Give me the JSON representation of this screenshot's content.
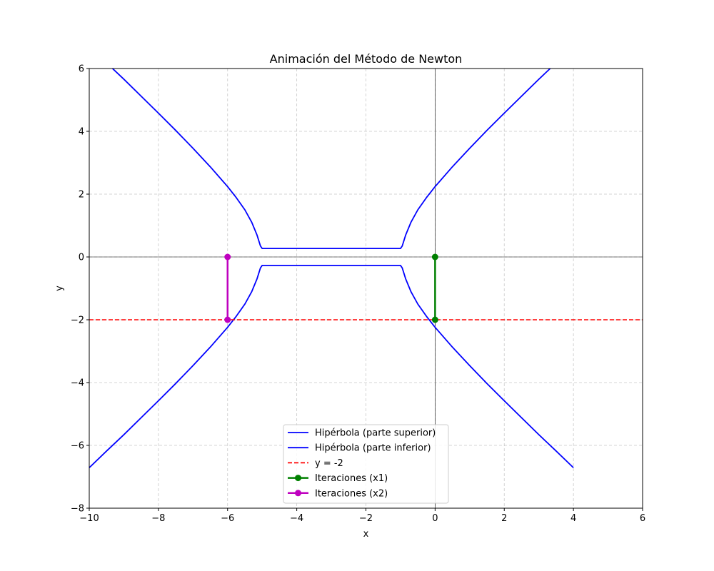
{
  "chart_data": {
    "type": "line",
    "title": "Animación del Método de Newton",
    "xlabel": "x",
    "ylabel": "y",
    "xlim": [
      -10,
      6
    ],
    "ylim": [
      -8,
      6
    ],
    "xticks": [
      -10,
      -8,
      -6,
      -4,
      -2,
      0,
      2,
      4,
      6
    ],
    "yticks": [
      -8,
      -6,
      -4,
      -2,
      0,
      2,
      4,
      6
    ],
    "grid": true,
    "legend_position": "lower-center",
    "series": [
      {
        "name": "Hipérbola (parte superior)",
        "kind": "curve",
        "color": "#0000ff",
        "points": [
          [
            -10,
            6.71
          ],
          [
            -9.5,
            6.18
          ],
          [
            -9,
            5.66
          ],
          [
            -8.5,
            5.12
          ],
          [
            -8,
            4.58
          ],
          [
            -7.5,
            4.03
          ],
          [
            -7,
            3.46
          ],
          [
            -6.5,
            2.87
          ],
          [
            -6,
            2.24
          ],
          [
            -5.75,
            1.89
          ],
          [
            -5.5,
            1.5
          ],
          [
            -5.3,
            1.1
          ],
          [
            -5.15,
            0.7
          ],
          [
            -5.05,
            0.35
          ],
          [
            -5,
            0.27
          ],
          [
            -1,
            0.27
          ],
          [
            -0.95,
            0.35
          ],
          [
            -0.85,
            0.7
          ],
          [
            -0.7,
            1.1
          ],
          [
            -0.5,
            1.5
          ],
          [
            -0.25,
            1.89
          ],
          [
            0,
            2.24
          ],
          [
            0.5,
            2.87
          ],
          [
            1,
            3.46
          ],
          [
            1.5,
            4.03
          ],
          [
            2,
            4.58
          ],
          [
            2.5,
            5.12
          ],
          [
            3,
            5.66
          ],
          [
            3.5,
            6.18
          ],
          [
            4,
            6.71
          ]
        ]
      },
      {
        "name": "Hipérbola (parte inferior)",
        "kind": "curve",
        "color": "#0000ff",
        "points": [
          [
            -10,
            -6.71
          ],
          [
            -9.5,
            -6.18
          ],
          [
            -9,
            -5.66
          ],
          [
            -8.5,
            -5.12
          ],
          [
            -8,
            -4.58
          ],
          [
            -7.5,
            -4.03
          ],
          [
            -7,
            -3.46
          ],
          [
            -6.5,
            -2.87
          ],
          [
            -6,
            -2.24
          ],
          [
            -5.75,
            -1.89
          ],
          [
            -5.5,
            -1.5
          ],
          [
            -5.3,
            -1.1
          ],
          [
            -5.15,
            -0.7
          ],
          [
            -5.05,
            -0.35
          ],
          [
            -5,
            -0.27
          ],
          [
            -1,
            -0.27
          ],
          [
            -0.95,
            -0.35
          ],
          [
            -0.85,
            -0.7
          ],
          [
            -0.7,
            -1.1
          ],
          [
            -0.5,
            -1.5
          ],
          [
            -0.25,
            -1.89
          ],
          [
            0,
            -2.24
          ],
          [
            0.5,
            -2.87
          ],
          [
            1,
            -3.46
          ],
          [
            1.5,
            -4.03
          ],
          [
            2,
            -4.58
          ],
          [
            2.5,
            -5.12
          ],
          [
            3,
            -5.66
          ],
          [
            3.5,
            -6.18
          ],
          [
            4,
            -6.71
          ]
        ]
      },
      {
        "name": "y = -2",
        "kind": "hline",
        "color": "#ff0000",
        "y": -2
      },
      {
        "name": "Iteraciones (x1)",
        "kind": "markers",
        "color": "#008000",
        "points": [
          [
            0,
            0
          ],
          [
            0,
            -2
          ]
        ]
      },
      {
        "name": "Iteraciones (x2)",
        "kind": "markers",
        "color": "#bf00bf",
        "points": [
          [
            -6,
            0
          ],
          [
            -6,
            -2
          ]
        ]
      }
    ]
  }
}
